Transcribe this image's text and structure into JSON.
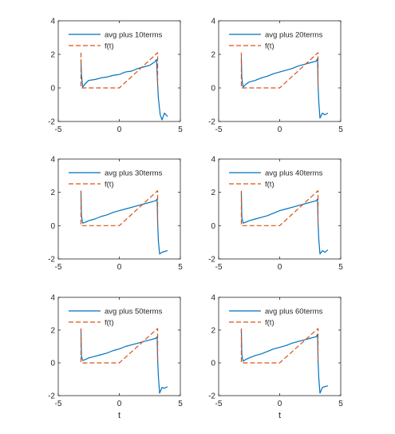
{
  "chart_data": [
    {
      "type": "line",
      "xlabel": "",
      "xlim": [
        -5,
        5
      ],
      "ylim": [
        -2,
        4
      ],
      "xticks": [
        "-5",
        "0",
        "5"
      ],
      "yticks": [
        "-2",
        "0",
        "2",
        "4"
      ],
      "legend_placement": "top-left",
      "series": [
        {
          "name": "avg plus 10terms",
          "style": "solid",
          "color": "#0072BD",
          "x": [
            -3.14,
            -3.1,
            -3.0,
            -2.8,
            -2.5,
            -2.0,
            -1.5,
            -1.0,
            -0.5,
            0.0,
            0.5,
            1.0,
            1.5,
            2.0,
            2.5,
            2.9,
            3.05,
            3.14,
            3.2,
            3.35,
            3.5,
            3.7,
            3.95
          ],
          "y": [
            1.7,
            0.8,
            0.05,
            0.25,
            0.45,
            0.5,
            0.6,
            0.65,
            0.75,
            0.8,
            0.95,
            1.0,
            1.15,
            1.25,
            1.35,
            1.55,
            1.7,
            0.2,
            -0.6,
            -1.6,
            -1.9,
            -1.5,
            -1.7
          ]
        },
        {
          "name": "f(t)",
          "style": "dashed",
          "color": "#D95319",
          "x": [
            -3.14,
            -3.14,
            0.0,
            3.14,
            3.14
          ],
          "y": [
            2.1,
            0.0,
            0.0,
            2.1,
            0.0
          ]
        }
      ]
    },
    {
      "type": "line",
      "xlabel": "",
      "xlim": [
        -5,
        5
      ],
      "ylim": [
        -2,
        4
      ],
      "xticks": [
        "-5",
        "0",
        "5"
      ],
      "yticks": [
        "-2",
        "0",
        "2",
        "4"
      ],
      "legend_placement": "top-left",
      "series": [
        {
          "name": "avg plus 20terms",
          "style": "solid",
          "color": "#0072BD",
          "x": [
            -3.14,
            -3.1,
            -3.0,
            -2.8,
            -2.5,
            -2.0,
            -1.5,
            -1.0,
            -0.5,
            0.0,
            0.5,
            1.0,
            1.5,
            2.0,
            2.5,
            3.0,
            3.1,
            3.14,
            3.2,
            3.3,
            3.5,
            3.7,
            3.95
          ],
          "y": [
            1.8,
            0.6,
            0.05,
            0.2,
            0.35,
            0.45,
            0.6,
            0.7,
            0.85,
            0.95,
            1.05,
            1.15,
            1.3,
            1.4,
            1.5,
            1.6,
            1.75,
            0.2,
            -0.8,
            -1.8,
            -1.5,
            -1.6,
            -1.5
          ]
        },
        {
          "name": "f(t)",
          "style": "dashed",
          "color": "#D95319",
          "x": [
            -3.14,
            -3.14,
            0.0,
            3.14,
            3.14
          ],
          "y": [
            2.1,
            0.0,
            0.0,
            2.1,
            0.0
          ]
        }
      ]
    },
    {
      "type": "line",
      "xlabel": "",
      "xlim": [
        -5,
        5
      ],
      "ylim": [
        -2,
        4
      ],
      "xticks": [
        "-5",
        "0",
        "5"
      ],
      "yticks": [
        "-2",
        "0",
        "2",
        "4"
      ],
      "legend_placement": "top-left",
      "series": [
        {
          "name": "avg plus 30terms",
          "style": "solid",
          "color": "#0072BD",
          "x": [
            -3.14,
            -3.1,
            -3.0,
            -2.8,
            -2.5,
            -2.0,
            -1.5,
            -1.0,
            -0.5,
            0.0,
            0.5,
            1.0,
            1.5,
            2.0,
            2.5,
            3.0,
            3.1,
            3.14,
            3.2,
            3.3,
            3.5,
            3.7,
            3.95
          ],
          "y": [
            2.1,
            0.6,
            0.15,
            0.2,
            0.3,
            0.4,
            0.55,
            0.65,
            0.8,
            0.9,
            1.0,
            1.1,
            1.2,
            1.3,
            1.4,
            1.5,
            1.6,
            0.2,
            -0.9,
            -1.7,
            -1.6,
            -1.55,
            -1.5
          ]
        },
        {
          "name": "f(t)",
          "style": "dashed",
          "color": "#D95319",
          "x": [
            -3.14,
            -3.14,
            0.0,
            3.14,
            3.14
          ],
          "y": [
            2.1,
            0.0,
            0.0,
            2.1,
            0.0
          ]
        }
      ]
    },
    {
      "type": "line",
      "xlabel": "",
      "xlim": [
        -5,
        5
      ],
      "ylim": [
        -2,
        4
      ],
      "xticks": [
        "-5",
        "0",
        "5"
      ],
      "yticks": [
        "-2",
        "0",
        "2",
        "4"
      ],
      "legend_placement": "top-left",
      "series": [
        {
          "name": "avg plus 40terms",
          "style": "solid",
          "color": "#0072BD",
          "x": [
            -3.14,
            -3.1,
            -3.0,
            -2.8,
            -2.5,
            -2.0,
            -1.5,
            -1.0,
            -0.5,
            0.0,
            0.5,
            1.0,
            1.5,
            2.0,
            2.5,
            3.0,
            3.1,
            3.14,
            3.2,
            3.3,
            3.5,
            3.7,
            3.95
          ],
          "y": [
            2.0,
            0.5,
            0.15,
            0.2,
            0.3,
            0.4,
            0.5,
            0.6,
            0.75,
            0.9,
            1.0,
            1.1,
            1.2,
            1.3,
            1.4,
            1.5,
            1.6,
            0.2,
            -0.8,
            -1.7,
            -1.5,
            -1.6,
            -1.45
          ]
        },
        {
          "name": "f(t)",
          "style": "dashed",
          "color": "#D95319",
          "x": [
            -3.14,
            -3.14,
            0.0,
            3.14,
            3.14
          ],
          "y": [
            2.1,
            0.0,
            0.0,
            2.1,
            0.0
          ]
        }
      ]
    },
    {
      "type": "line",
      "xlabel": "t",
      "xlim": [
        -5,
        5
      ],
      "ylim": [
        -2,
        4
      ],
      "xticks": [
        "-5",
        "0",
        "5"
      ],
      "yticks": [
        "-2",
        "0",
        "2",
        "4"
      ],
      "legend_placement": "top-left",
      "series": [
        {
          "name": "avg plus 50terms",
          "style": "solid",
          "color": "#0072BD",
          "x": [
            -3.14,
            -3.1,
            -3.0,
            -2.8,
            -2.5,
            -2.0,
            -1.5,
            -1.0,
            -0.5,
            0.0,
            0.5,
            1.0,
            1.5,
            2.0,
            2.5,
            3.0,
            3.1,
            3.14,
            3.2,
            3.3,
            3.5,
            3.7,
            3.95
          ],
          "y": [
            2.1,
            0.4,
            0.15,
            0.2,
            0.3,
            0.4,
            0.5,
            0.6,
            0.75,
            0.85,
            1.0,
            1.1,
            1.2,
            1.3,
            1.4,
            1.5,
            1.6,
            0.2,
            -0.8,
            -1.85,
            -1.5,
            -1.55,
            -1.45
          ]
        },
        {
          "name": "f(t)",
          "style": "dashed",
          "color": "#D95319",
          "x": [
            -3.14,
            -3.14,
            0.0,
            3.14,
            3.14
          ],
          "y": [
            2.1,
            0.0,
            0.0,
            2.1,
            0.0
          ]
        }
      ]
    },
    {
      "type": "line",
      "xlabel": "t",
      "xlim": [
        -5,
        5
      ],
      "ylim": [
        -2,
        4
      ],
      "xticks": [
        "-5",
        "0",
        "5"
      ],
      "yticks": [
        "-2",
        "0",
        "2",
        "4"
      ],
      "legend_placement": "top-left",
      "series": [
        {
          "name": "avg plus 60terms",
          "style": "solid",
          "color": "#0072BD",
          "x": [
            -3.14,
            -3.1,
            -3.0,
            -2.8,
            -2.5,
            -2.0,
            -1.5,
            -1.0,
            -0.5,
            0.0,
            0.5,
            1.0,
            1.5,
            2.0,
            2.5,
            3.0,
            3.1,
            3.14,
            3.2,
            3.3,
            3.5,
            3.7,
            3.95
          ],
          "y": [
            2.0,
            0.5,
            0.1,
            0.2,
            0.3,
            0.45,
            0.55,
            0.7,
            0.85,
            0.95,
            1.05,
            1.2,
            1.3,
            1.4,
            1.5,
            1.6,
            1.75,
            0.2,
            -0.9,
            -1.85,
            -1.5,
            -1.45,
            -1.4
          ]
        },
        {
          "name": "f(t)",
          "style": "dashed",
          "color": "#D95319",
          "x": [
            -3.14,
            -3.14,
            0.0,
            3.14,
            3.14
          ],
          "y": [
            2.1,
            0.0,
            0.0,
            2.1,
            0.0
          ]
        }
      ]
    }
  ]
}
